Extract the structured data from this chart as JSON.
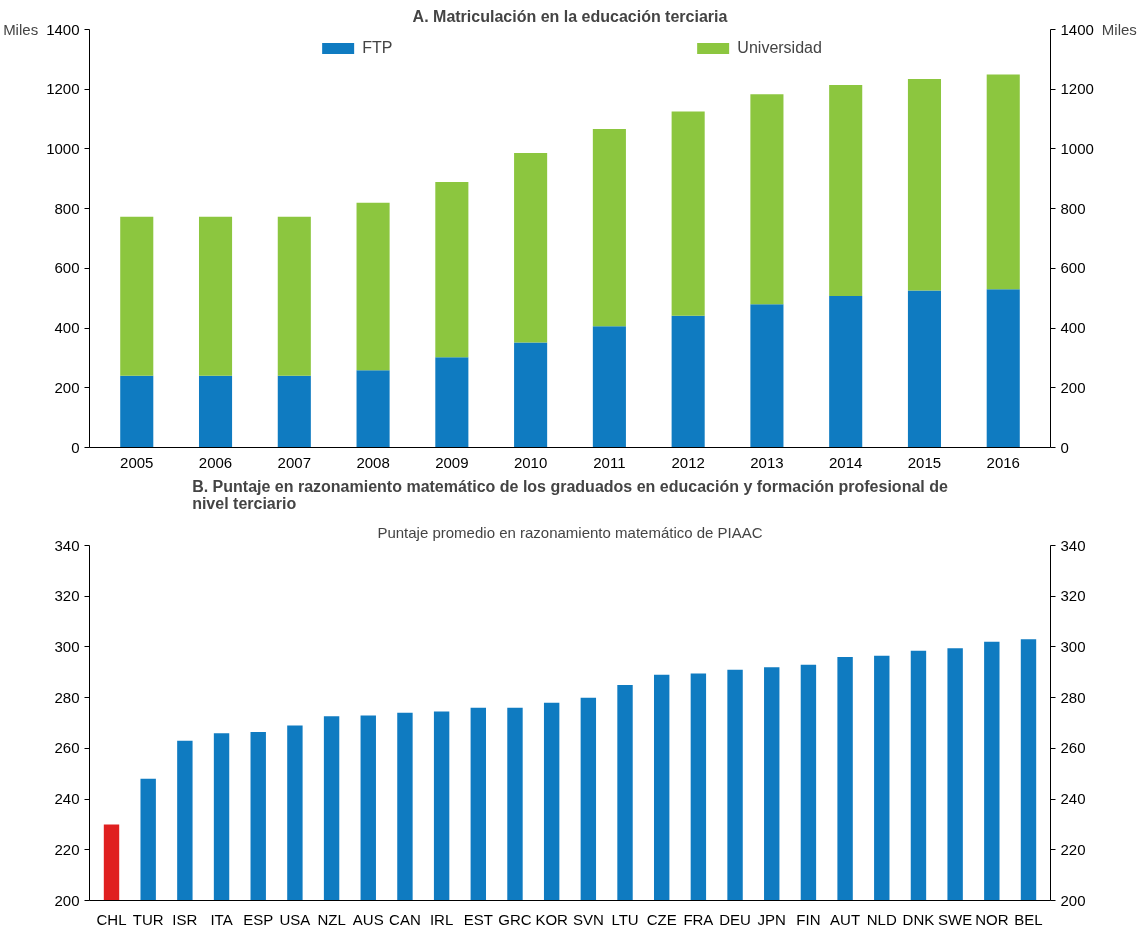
{
  "chart_data": [
    {
      "type": "bar",
      "title": "A. Matriculación en la educación terciaria",
      "ylabel": "Miles",
      "y2label": "Miles",
      "stacked": true,
      "legend": "top",
      "categories": [
        "2005",
        "2006",
        "2007",
        "2008",
        "2009",
        "2010",
        "2011",
        "2012",
        "2013",
        "2014",
        "2015",
        "2016"
      ],
      "series": [
        {
          "name": "FTP",
          "color": "#0f7bc1",
          "values": [
            240,
            240,
            240,
            259,
            302,
            352,
            406,
            441,
            480,
            507,
            526,
            530
          ]
        },
        {
          "name": "Universidad",
          "color": "#8cc63f",
          "values": [
            533,
            533,
            533,
            561,
            587,
            634,
            661,
            684,
            703,
            707,
            708,
            719
          ]
        }
      ],
      "ylim": [
        0,
        1400
      ],
      "yticks": [
        0,
        200,
        400,
        600,
        800,
        1000,
        1200,
        1400
      ],
      "y2lim": [
        0,
        1400
      ],
      "y2ticks": [
        0,
        200,
        400,
        600,
        800,
        1000,
        1200,
        1400
      ]
    },
    {
      "type": "bar",
      "title": "B. Puntaje en razonamiento matemático de los graduados en educación y formación profesional de nivel terciario",
      "subtitle": "Puntaje promedio en razonamiento matemático de PIAAC",
      "categories": [
        "CHL",
        "TUR",
        "ISR",
        "ITA",
        "ESP",
        "USA",
        "NZL",
        "AUS",
        "CAN",
        "IRL",
        "EST",
        "GRC",
        "KOR",
        "SVN",
        "LTU",
        "CZE",
        "FRA",
        "DEU",
        "JPN",
        "FIN",
        "AUT",
        "NLD",
        "DNK",
        "SWE",
        "NOR",
        "BEL"
      ],
      "series": [
        {
          "colors": [
            "#e02020",
            "#0f7bc1",
            "#0f7bc1",
            "#0f7bc1",
            "#0f7bc1",
            "#0f7bc1",
            "#0f7bc1",
            "#0f7bc1",
            "#0f7bc1",
            "#0f7bc1",
            "#0f7bc1",
            "#0f7bc1",
            "#0f7bc1",
            "#0f7bc1",
            "#0f7bc1",
            "#0f7bc1",
            "#0f7bc1",
            "#0f7bc1",
            "#0f7bc1",
            "#0f7bc1",
            "#0f7bc1",
            "#0f7bc1",
            "#0f7bc1",
            "#0f7bc1",
            "#0f7bc1",
            "#0f7bc1"
          ],
          "values": [
            230,
            248,
            263,
            266,
            266.5,
            269,
            272.7,
            273,
            274,
            274.5,
            276,
            276,
            278,
            280,
            285,
            289,
            289.5,
            291,
            292,
            293,
            296,
            296.5,
            298.5,
            299.5,
            302,
            303
          ]
        }
      ],
      "ylim": [
        200,
        340
      ],
      "yticks": [
        200,
        220,
        240,
        260,
        280,
        300,
        320,
        340
      ],
      "y2lim": [
        200,
        340
      ],
      "y2ticks": [
        200,
        220,
        240,
        260,
        280,
        300,
        320,
        340
      ]
    }
  ]
}
